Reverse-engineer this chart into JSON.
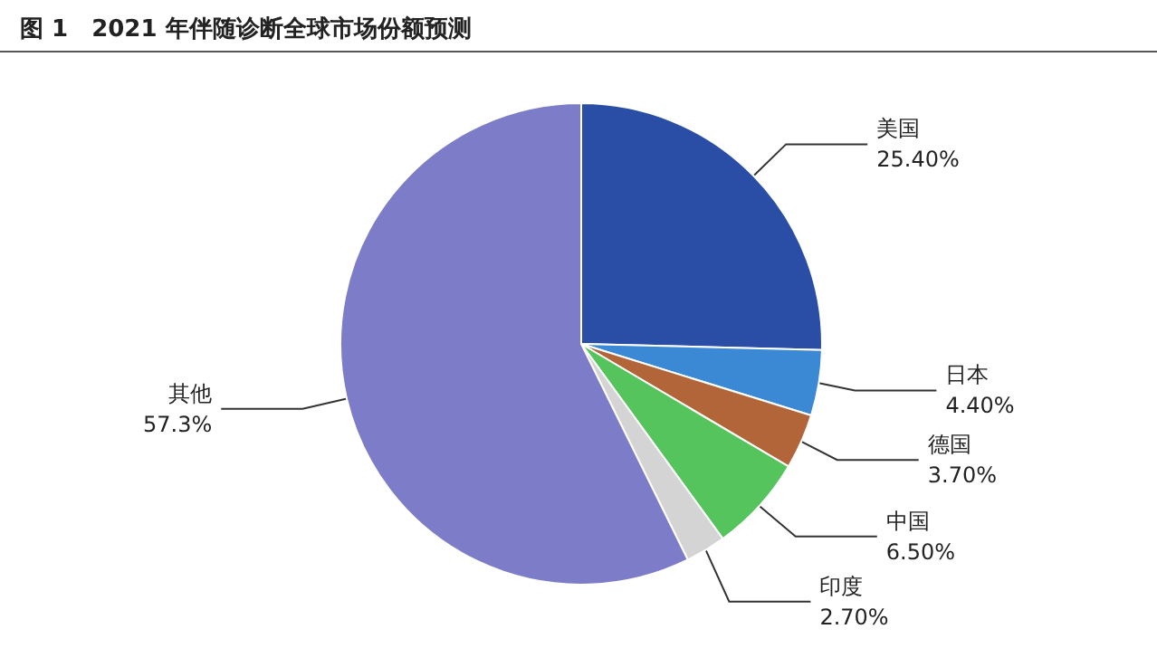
{
  "chart_data": {
    "type": "pie",
    "title": "图 1　2021 年伴随诊断全球市场份额预测",
    "categories": [
      "美国",
      "日本",
      "德国",
      "中国",
      "印度",
      "其他"
    ],
    "values": [
      25.4,
      4.4,
      3.7,
      6.5,
      2.7,
      57.3
    ],
    "colors": [
      "#2a4ea6",
      "#3b88d4",
      "#b3653a",
      "#55c45c",
      "#d4d4d4",
      "#7c7cc8"
    ],
    "value_labels": [
      "25.40%",
      "4.40%",
      "3.70%",
      "6.50%",
      "2.70%",
      "57.3%"
    ],
    "legend": false
  }
}
